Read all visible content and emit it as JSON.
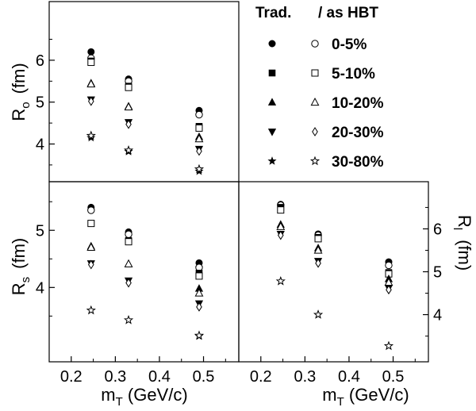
{
  "chart_data": {
    "type": "scatter",
    "x_values": [
      0.245,
      0.33,
      0.49
    ],
    "series": [
      {
        "name": "0-5%",
        "color": "#000000",
        "trad_marker": "filled-circle",
        "hbt_marker": "open-circle",
        "ro": {
          "trad": [
            6.2,
            5.55,
            4.8
          ],
          "hbt": [
            6.05,
            5.5,
            4.7
          ]
        },
        "rs": {
          "trad": [
            5.4,
            4.97,
            4.43
          ],
          "hbt": [
            5.35,
            4.93,
            4.35
          ]
        },
        "rl": {
          "trad": [
            6.57,
            5.88,
            5.23
          ],
          "hbt": [
            6.55,
            5.85,
            5.15
          ]
        }
      },
      {
        "name": "5-10%",
        "color": "#000000",
        "trad_marker": "filled-square",
        "hbt_marker": "open-square",
        "ro": {
          "trad": [
            5.98,
            5.38,
            4.42
          ],
          "hbt": [
            5.95,
            5.35,
            4.38
          ]
        },
        "rs": {
          "trad": [
            5.12,
            4.82,
            4.25
          ],
          "hbt": [
            5.12,
            4.8,
            4.2
          ]
        },
        "rl": {
          "trad": [
            6.5,
            5.8,
            4.98
          ],
          "hbt": [
            6.44,
            5.77,
            4.95
          ]
        }
      },
      {
        "name": "10-20%",
        "color": "#000000",
        "trad_marker": "filled-triangle-up",
        "hbt_marker": "open-triangle-up",
        "ro": {
          "trad": [
            5.45,
            4.9,
            4.17
          ],
          "hbt": [
            5.43,
            4.88,
            4.12
          ]
        },
        "rs": {
          "trad": [
            4.72,
            4.41,
            3.98
          ],
          "hbt": [
            4.7,
            4.41,
            3.9
          ]
        },
        "rl": {
          "trad": [
            6.1,
            5.55,
            4.83
          ],
          "hbt": [
            6.05,
            5.5,
            4.75
          ]
        }
      },
      {
        "name": "20-30%",
        "color": "#000000",
        "trad_marker": "filled-triangle-down",
        "hbt_marker": "open-diamond",
        "ro": {
          "trad": [
            5.06,
            4.52,
            3.88
          ],
          "hbt": [
            5.02,
            4.47,
            3.83
          ]
        },
        "rs": {
          "trad": [
            4.42,
            4.12,
            3.72
          ],
          "hbt": [
            4.4,
            4.08,
            3.66
          ]
        },
        "rl": {
          "trad": [
            5.88,
            5.25,
            4.62
          ],
          "hbt": [
            5.85,
            5.2,
            4.58
          ]
        }
      },
      {
        "name": "30-80%",
        "color": "#000000",
        "trad_marker": "filled-star",
        "hbt_marker": "open-star",
        "ro": {
          "trad": [
            4.15,
            3.82,
            3.35
          ],
          "hbt": [
            4.2,
            3.85,
            3.4
          ]
        },
        "rs": {
          "trad": [
            3.6,
            3.43,
            3.15
          ],
          "hbt": [
            3.6,
            3.43,
            3.16
          ]
        },
        "rl": {
          "trad": [
            4.78,
            4.0,
            3.27
          ],
          "hbt": [
            4.78,
            4.0,
            3.27
          ]
        }
      }
    ],
    "legend": {
      "header_trad": "Trad.",
      "header_sep": "/ as HBT",
      "placement": "top-right"
    },
    "axes": {
      "x": {
        "label_main": "m",
        "label_sub": "T",
        "label_rest": " (GeV/c)",
        "range": [
          0.15,
          0.58
        ],
        "ticks": [
          "0.2",
          "0.3",
          "0.4",
          "0.5"
        ]
      },
      "ro": {
        "label_main": "R",
        "label_sub": "o",
        "label_rest": "(fm)",
        "range": [
          3.1,
          7.4
        ],
        "ticks": [
          "4",
          "5",
          "6"
        ]
      },
      "rs": {
        "label_main": "R",
        "label_sub": "s",
        "label_rest": "(fm)",
        "range": [
          2.7,
          5.85
        ],
        "ticks": [
          "4",
          "5"
        ]
      },
      "rl": {
        "label_main": "R",
        "label_sub": "l",
        "label_rest": "(fm)",
        "range": [
          2.9,
          7.1
        ],
        "ticks": [
          "4",
          "5",
          "6"
        ]
      }
    }
  }
}
